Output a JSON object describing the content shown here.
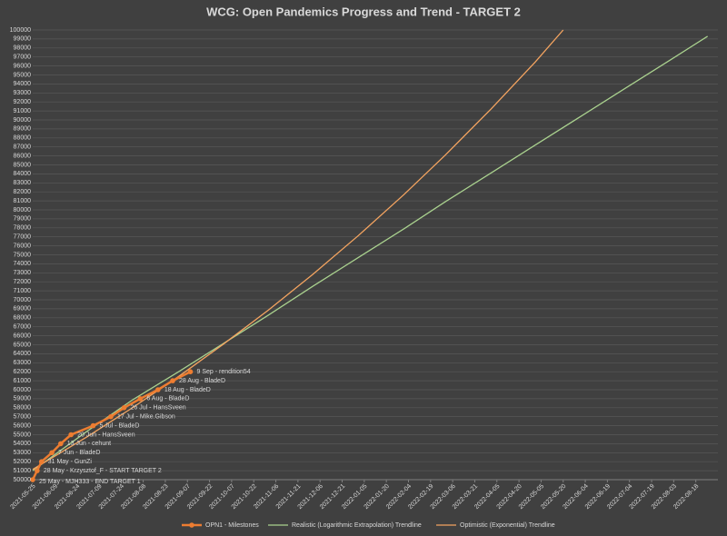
{
  "chart_data": {
    "type": "line",
    "title": "WCG: Open Pandemics Progress and Trend - TARGET 2",
    "xlim": [
      "2021-05-25",
      "2022-09-02"
    ],
    "xticks": [
      "2021-05-25",
      "2021-06-09",
      "2021-06-24",
      "2021-07-09",
      "2021-07-24",
      "2021-08-08",
      "2021-08-23",
      "2021-09-07",
      "2021-09-22",
      "2021-10-07",
      "2021-10-22",
      "2021-11-06",
      "2021-11-21",
      "2021-12-06",
      "2021-12-21",
      "2022-01-05",
      "2022-01-20",
      "2022-02-04",
      "2022-02-19",
      "2022-03-06",
      "2022-03-21",
      "2022-04-05",
      "2022-04-20",
      "2022-05-05",
      "2022-05-20",
      "2022-06-04",
      "2022-06-19",
      "2022-07-04",
      "2022-07-19",
      "2022-08-03",
      "2022-08-18"
    ],
    "ylim": [
      50000,
      100000
    ],
    "yticks": [
      50000,
      51000,
      52000,
      53000,
      54000,
      55000,
      56000,
      57000,
      58000,
      59000,
      60000,
      61000,
      62000,
      63000,
      64000,
      65000,
      66000,
      67000,
      68000,
      69000,
      70000,
      71000,
      72000,
      73000,
      74000,
      75000,
      76000,
      77000,
      78000,
      79000,
      80000,
      81000,
      82000,
      83000,
      84000,
      85000,
      86000,
      87000,
      88000,
      89000,
      90000,
      91000,
      92000,
      93000,
      94000,
      95000,
      96000,
      97000,
      98000,
      99000,
      100000
    ],
    "grid": true,
    "legend": "bottom",
    "series": [
      {
        "name": "OPN1 - Milestones",
        "color": "#ed7d31",
        "markers": true,
        "x": [
          "2021-05-25",
          "2021-05-28",
          "2021-05-31",
          "2021-06-07",
          "2021-06-13",
          "2021-06-20",
          "2021-07-05",
          "2021-07-17",
          "2021-07-26",
          "2021-08-06",
          "2021-08-18",
          "2021-08-28",
          "2021-09-09"
        ],
        "values": [
          50000,
          51000,
          52000,
          53000,
          54000,
          55000,
          56000,
          57000,
          58000,
          59000,
          60000,
          61000,
          62000
        ],
        "point_labels": [
          "25 May - MJH333 - END TARGET 1",
          "28 May - Krzysztof_F - START TARGET 2",
          "31 May - GunZi",
          "7 Jun - BladeD",
          "13 Jun - cehunt",
          "20 Jun - HansSveen",
          "5 Jul - BladeD",
          "17 Jul - Mike.Gibson",
          "26 Jul - HansSveen",
          "6 Aug - BladeD",
          "18 Aug - BladeD",
          "28 Aug - BladeD",
          "9 Sep - rendition54"
        ]
      },
      {
        "name": "Realistic (Logarithmic Extrapolation) Trendline",
        "color": "#a9d18e",
        "markers": false,
        "x": [
          "2021-05-25",
          "2021-07-01",
          "2021-08-01",
          "2021-09-01",
          "2021-10-01",
          "2021-11-01",
          "2021-12-01",
          "2022-01-01",
          "2022-02-01",
          "2022-03-01",
          "2022-04-01",
          "2022-05-01",
          "2022-06-01",
          "2022-07-01",
          "2022-08-01",
          "2022-08-26"
        ],
        "values": [
          51000,
          55400,
          58900,
          62000,
          65100,
          68300,
          71500,
          74700,
          77900,
          80900,
          84100,
          87200,
          90400,
          93500,
          96700,
          99300
        ]
      },
      {
        "name": "Optimistic (Exponential) Trendline",
        "color": "#f4a460",
        "markers": false,
        "x": [
          "2021-05-25",
          "2021-07-01",
          "2021-08-01",
          "2021-09-01",
          "2021-10-01",
          "2021-11-01",
          "2021-12-01",
          "2022-01-01",
          "2022-02-01",
          "2022-03-01",
          "2022-04-01",
          "2022-05-01",
          "2022-05-20"
        ],
        "values": [
          51140,
          54780,
          58030,
          61470,
          65020,
          68860,
          72820,
          77140,
          81710,
          86090,
          91210,
          96430,
          100000
        ]
      }
    ]
  }
}
